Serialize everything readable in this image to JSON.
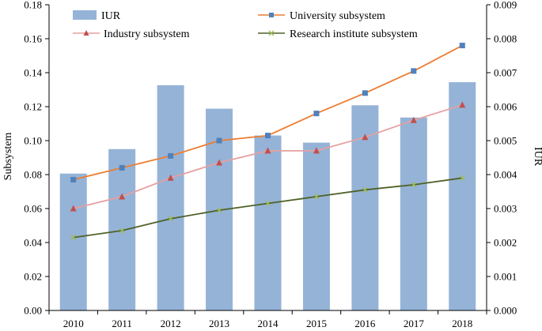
{
  "chart_data": {
    "type": "bar+line (dual axis)",
    "categories": [
      "2010",
      "2011",
      "2012",
      "2013",
      "2014",
      "2015",
      "2016",
      "2017",
      "2018"
    ],
    "left_axis": {
      "label": "Subsystem",
      "min": 0,
      "max": 0.18,
      "ticks": [
        "0.00",
        "0.02",
        "0.04",
        "0.06",
        "0.08",
        "0.10",
        "0.12",
        "0.14",
        "0.16",
        "0.18"
      ]
    },
    "right_axis": {
      "label": "IUR",
      "min": 0,
      "max": 0.009,
      "ticks": [
        "0.000",
        "0.001",
        "0.002",
        "0.003",
        "0.004",
        "0.005",
        "0.006",
        "0.007",
        "0.008",
        "0.009"
      ]
    },
    "bars": {
      "name": "IUR",
      "axis": "right",
      "color": "#95B3D7",
      "values": [
        0.00403,
        0.00475,
        0.00663,
        0.00594,
        0.00515,
        0.00494,
        0.00604,
        0.00568,
        0.00672
      ]
    },
    "series": [
      {
        "name": "University subsystem",
        "axis": "left",
        "color": "#ED7D31",
        "marker": "square",
        "markerColor": "#4F81BD",
        "values": [
          0.077,
          0.084,
          0.091,
          0.1,
          0.103,
          0.116,
          0.128,
          0.141,
          0.156
        ]
      },
      {
        "name": "Industry subsystem",
        "axis": "left",
        "color": "#E6A0A0",
        "marker": "triangle",
        "markerColor": "#C0504D",
        "values": [
          0.06,
          0.067,
          0.078,
          0.087,
          0.094,
          0.094,
          0.102,
          0.112,
          0.121
        ]
      },
      {
        "name": "Research institute subsystem",
        "axis": "left",
        "color": "#4F6228",
        "marker": "x",
        "markerColor": "#9BBB59",
        "values": [
          0.043,
          0.047,
          0.054,
          0.059,
          0.063,
          0.067,
          0.071,
          0.074,
          0.078
        ]
      }
    ],
    "legend": {
      "items": [
        {
          "label": "IUR"
        },
        {
          "label": "University subsystem"
        },
        {
          "label": "Industry subsystem"
        },
        {
          "label": "Research institute subsystem"
        }
      ]
    },
    "grid": false
  }
}
